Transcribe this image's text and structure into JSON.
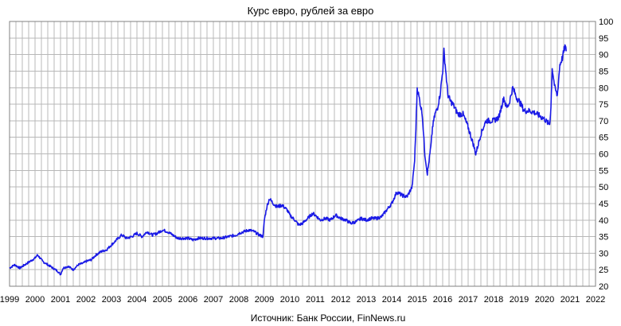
{
  "chart_data": {
    "type": "line",
    "title": "Курс евро, рублей за евро",
    "source": "Источник: Банк России, FinNews.ru",
    "xlabel": "",
    "ylabel": "",
    "xlim": [
      1999,
      2022
    ],
    "ylim": [
      20,
      100
    ],
    "x_ticks": [
      "1999",
      "2000",
      "2001",
      "2002",
      "2003",
      "2004",
      "2005",
      "2006",
      "2007",
      "2008",
      "2009",
      "2010",
      "2011",
      "2012",
      "2013",
      "2014",
      "2015",
      "2016",
      "2017",
      "2018",
      "2019",
      "2020",
      "2021",
      "2022"
    ],
    "y_ticks": [
      "20",
      "25",
      "30",
      "35",
      "40",
      "45",
      "50",
      "55",
      "60",
      "65",
      "70",
      "75",
      "80",
      "85",
      "90",
      "95",
      "100"
    ],
    "grid": "on",
    "series": [
      {
        "color": "#1a1ae6",
        "x": [
          1999.0,
          1999.2,
          1999.4,
          1999.6,
          1999.8,
          2000.0,
          2000.1,
          2000.3,
          2000.5,
          2000.7,
          2000.9,
          2001.0,
          2001.1,
          2001.3,
          2001.5,
          2001.7,
          2001.9,
          2002.0,
          2002.2,
          2002.4,
          2002.6,
          2002.8,
          2003.0,
          2003.2,
          2003.4,
          2003.6,
          2003.8,
          2004.0,
          2004.2,
          2004.4,
          2004.6,
          2004.8,
          2005.0,
          2005.2,
          2005.4,
          2005.6,
          2005.8,
          2006.0,
          2006.2,
          2006.4,
          2006.6,
          2006.8,
          2007.0,
          2007.3,
          2007.6,
          2007.9,
          2008.0,
          2008.2,
          2008.4,
          2008.6,
          2008.8,
          2008.95,
          2009.0,
          2009.1,
          2009.2,
          2009.35,
          2009.5,
          2009.7,
          2009.9,
          2010.0,
          2010.2,
          2010.35,
          2010.5,
          2010.7,
          2010.9,
          2011.0,
          2011.2,
          2011.4,
          2011.6,
          2011.8,
          2012.0,
          2012.2,
          2012.4,
          2012.6,
          2012.8,
          2013.0,
          2013.2,
          2013.4,
          2013.6,
          2013.8,
          2014.0,
          2014.2,
          2014.4,
          2014.6,
          2014.8,
          2014.9,
          2014.95,
          2015.0,
          2015.1,
          2015.2,
          2015.3,
          2015.4,
          2015.5,
          2015.55,
          2015.6,
          2015.7,
          2015.8,
          2015.9,
          2016.0,
          2016.05,
          2016.1,
          2016.2,
          2016.3,
          2016.4,
          2016.6,
          2016.8,
          2017.0,
          2017.2,
          2017.3,
          2017.5,
          2017.7,
          2017.9,
          2018.0,
          2018.2,
          2018.4,
          2018.5,
          2018.6,
          2018.75,
          2018.9,
          2019.0,
          2019.2,
          2019.4,
          2019.6,
          2019.8,
          2020.0,
          2020.1,
          2020.2,
          2020.25,
          2020.3,
          2020.4,
          2020.5,
          2020.6,
          2020.7,
          2020.8,
          2020.85
        ],
        "values": [
          25.5,
          26.5,
          25.5,
          26.5,
          27.5,
          28.5,
          29.5,
          27.5,
          26.5,
          25.5,
          24.5,
          23.5,
          25.5,
          26.0,
          25.0,
          26.5,
          27.0,
          27.5,
          28.0,
          29.5,
          30.5,
          31.0,
          32.5,
          34.0,
          35.5,
          34.5,
          35.0,
          36.0,
          35.0,
          36.5,
          35.5,
          36.0,
          37.0,
          36.5,
          35.5,
          34.5,
          34.5,
          34.5,
          34.0,
          34.5,
          34.5,
          34.5,
          34.5,
          34.5,
          35.0,
          35.5,
          36.0,
          36.5,
          37.0,
          36.5,
          35.5,
          35.0,
          40.0,
          44.0,
          46.5,
          45.0,
          44.0,
          44.5,
          43.0,
          41.5,
          40.0,
          38.5,
          39.0,
          40.5,
          42.0,
          41.5,
          40.0,
          40.5,
          40.0,
          41.5,
          40.5,
          40.0,
          39.0,
          39.5,
          40.5,
          40.0,
          40.5,
          40.5,
          41.0,
          43.0,
          45.0,
          48.5,
          47.5,
          47.0,
          50.0,
          58.0,
          68.0,
          80.0,
          76.0,
          72.0,
          60.0,
          54.0,
          60.0,
          63.0,
          68.0,
          72.0,
          74.0,
          78.0,
          85.0,
          91.0,
          87.0,
          78.0,
          76.0,
          75.0,
          72.0,
          72.0,
          68.0,
          63.0,
          60.0,
          66.0,
          70.0,
          70.0,
          70.0,
          71.0,
          77.0,
          74.0,
          75.0,
          80.0,
          77.0,
          76.0,
          73.0,
          73.0,
          72.5,
          71.5,
          70.5,
          69.5,
          69.0,
          74.0,
          86.0,
          80.0,
          77.5,
          87.0,
          89.0,
          92.5,
          91.0
        ]
      }
    ]
  }
}
